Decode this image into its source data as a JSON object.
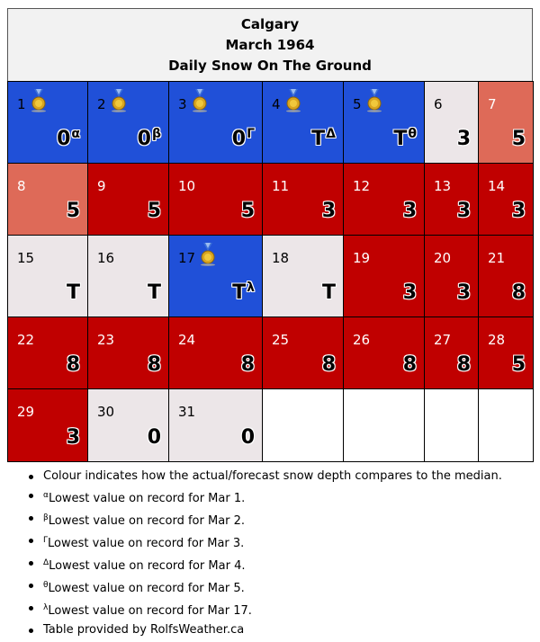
{
  "title": {
    "city": "Calgary",
    "month": "March 1964",
    "subtitle": "Daily Snow On The Ground"
  },
  "colors": {
    "blue": "#2050d8",
    "red": "#c00000",
    "salmon": "#de6a58",
    "light": "#ece6e8",
    "white": "#ffffff"
  },
  "chart_data": {
    "type": "table",
    "title": "Calgary March 1964 Daily Snow On The Ground",
    "days": [
      {
        "day": "1",
        "value": "0",
        "mark": "α",
        "color": "blue",
        "medal": true
      },
      {
        "day": "2",
        "value": "0",
        "mark": "β",
        "color": "blue",
        "medal": true
      },
      {
        "day": "3",
        "value": "0",
        "mark": "Γ",
        "color": "blue",
        "medal": true
      },
      {
        "day": "4",
        "value": "T",
        "mark": "Δ",
        "color": "blue",
        "medal": true
      },
      {
        "day": "5",
        "value": "T",
        "mark": "θ",
        "color": "blue",
        "medal": true
      },
      {
        "day": "6",
        "value": "3",
        "mark": "",
        "color": "light",
        "medal": false
      },
      {
        "day": "7",
        "value": "5",
        "mark": "",
        "color": "salmon",
        "medal": false
      },
      {
        "day": "8",
        "value": "5",
        "mark": "",
        "color": "salmon",
        "medal": false
      },
      {
        "day": "9",
        "value": "5",
        "mark": "",
        "color": "red",
        "medal": false
      },
      {
        "day": "10",
        "value": "5",
        "mark": "",
        "color": "red",
        "medal": false
      },
      {
        "day": "11",
        "value": "3",
        "mark": "",
        "color": "red",
        "medal": false
      },
      {
        "day": "12",
        "value": "3",
        "mark": "",
        "color": "red",
        "medal": false
      },
      {
        "day": "13",
        "value": "3",
        "mark": "",
        "color": "red",
        "medal": false
      },
      {
        "day": "14",
        "value": "3",
        "mark": "",
        "color": "red",
        "medal": false
      },
      {
        "day": "15",
        "value": "T",
        "mark": "",
        "color": "light",
        "medal": false
      },
      {
        "day": "16",
        "value": "T",
        "mark": "",
        "color": "light",
        "medal": false
      },
      {
        "day": "17",
        "value": "T",
        "mark": "λ",
        "color": "blue",
        "medal": true
      },
      {
        "day": "18",
        "value": "T",
        "mark": "",
        "color": "light",
        "medal": false
      },
      {
        "day": "19",
        "value": "3",
        "mark": "",
        "color": "red",
        "medal": false
      },
      {
        "day": "20",
        "value": "3",
        "mark": "",
        "color": "red",
        "medal": false
      },
      {
        "day": "21",
        "value": "8",
        "mark": "",
        "color": "red",
        "medal": false
      },
      {
        "day": "22",
        "value": "8",
        "mark": "",
        "color": "red",
        "medal": false
      },
      {
        "day": "23",
        "value": "8",
        "mark": "",
        "color": "red",
        "medal": false
      },
      {
        "day": "24",
        "value": "8",
        "mark": "",
        "color": "red",
        "medal": false
      },
      {
        "day": "25",
        "value": "8",
        "mark": "",
        "color": "red",
        "medal": false
      },
      {
        "day": "26",
        "value": "8",
        "mark": "",
        "color": "red",
        "medal": false
      },
      {
        "day": "27",
        "value": "8",
        "mark": "",
        "color": "red",
        "medal": false
      },
      {
        "day": "28",
        "value": "5",
        "mark": "",
        "color": "red",
        "medal": false
      },
      {
        "day": "29",
        "value": "3",
        "mark": "",
        "color": "red",
        "medal": false
      },
      {
        "day": "30",
        "value": "0",
        "mark": "",
        "color": "light",
        "medal": false
      },
      {
        "day": "31",
        "value": "0",
        "mark": "",
        "color": "light",
        "medal": false
      }
    ]
  },
  "notes": [
    {
      "mark": "",
      "text": "Colour indicates how the actual/forecast snow depth compares to the median."
    },
    {
      "mark": "α",
      "text": "Lowest value on record for Mar 1."
    },
    {
      "mark": "β",
      "text": "Lowest value on record for Mar 2."
    },
    {
      "mark": "Γ",
      "text": "Lowest value on record for Mar 3."
    },
    {
      "mark": "Δ",
      "text": "Lowest value on record for Mar 4."
    },
    {
      "mark": "θ",
      "text": "Lowest value on record for Mar 5."
    },
    {
      "mark": "λ",
      "text": "Lowest value on record for Mar 17."
    },
    {
      "mark": "",
      "text": "Table provided by RolfsWeather.ca"
    }
  ]
}
